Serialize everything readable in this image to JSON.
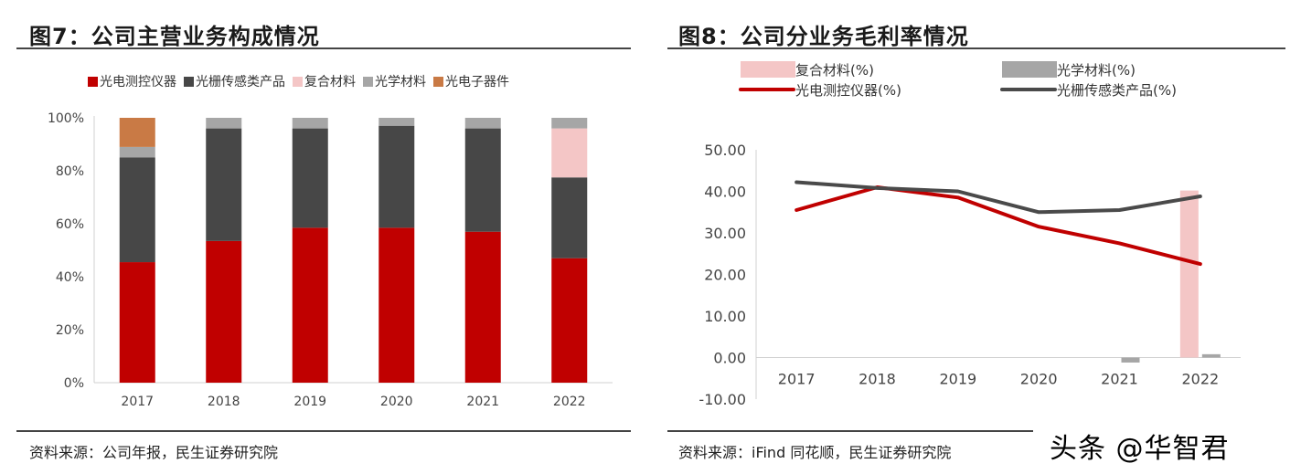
{
  "left": {
    "title": "图7：公司主营业务构成情况",
    "source": "资料来源：公司年报，民生证券研究院"
  },
  "right": {
    "title": "图8：公司分业务毛利率情况",
    "source": "资料来源：iFind 同花顺，民生证券研究院"
  },
  "watermark": "头条 @华智君",
  "chart_data": [
    {
      "type": "bar",
      "stacked": true,
      "title": "",
      "categories": [
        "2017",
        "2018",
        "2019",
        "2020",
        "2021",
        "2022"
      ],
      "ylim": [
        0,
        100
      ],
      "yticks": [
        "0%",
        "20%",
        "40%",
        "60%",
        "80%",
        "100%"
      ],
      "legend_position": "top",
      "series": [
        {
          "name": "光电测控仪器",
          "color": "#c00000",
          "values": [
            45.5,
            53.5,
            58.5,
            58.5,
            57,
            47
          ]
        },
        {
          "name": "光栅传感类产品",
          "color": "#474747",
          "values": [
            39.5,
            42.5,
            37.5,
            38.5,
            39,
            30.5
          ]
        },
        {
          "name": "复合材料",
          "color": "#f4c6c6",
          "values": [
            0,
            0,
            0,
            0,
            0,
            18.5
          ]
        },
        {
          "name": "光学材料",
          "color": "#a6a6a6",
          "values": [
            4,
            4,
            4,
            3,
            4,
            4
          ]
        },
        {
          "name": "光电子器件",
          "color": "#c97a45",
          "values": [
            11,
            0,
            0,
            0,
            0,
            0
          ]
        }
      ]
    },
    {
      "type": "line",
      "title": "",
      "categories": [
        "2017",
        "2018",
        "2019",
        "2020",
        "2021",
        "2022"
      ],
      "ylim": [
        -10,
        50
      ],
      "yticks": [
        "-10.00",
        "0.00",
        "10.00",
        "20.00",
        "30.00",
        "40.00",
        "50.00"
      ],
      "legend_position": "top",
      "bars": [
        {
          "name": "复合材料(%)",
          "color": "#f4c6c6",
          "values": [
            null,
            null,
            null,
            null,
            null,
            40.2
          ]
        },
        {
          "name": "光学材料(%)",
          "color": "#a6a6a6",
          "values": [
            null,
            null,
            null,
            null,
            -1.2,
            0.8
          ]
        }
      ],
      "series": [
        {
          "name": "光电测控仪器(%)",
          "color": "#c00000",
          "values": [
            35.5,
            41,
            38.5,
            31.5,
            27.5,
            22.5
          ]
        },
        {
          "name": "光栅传感类产品(%)",
          "color": "#4a4a4a",
          "values": [
            42.2,
            40.8,
            40,
            35,
            35.5,
            38.8
          ]
        }
      ]
    }
  ]
}
